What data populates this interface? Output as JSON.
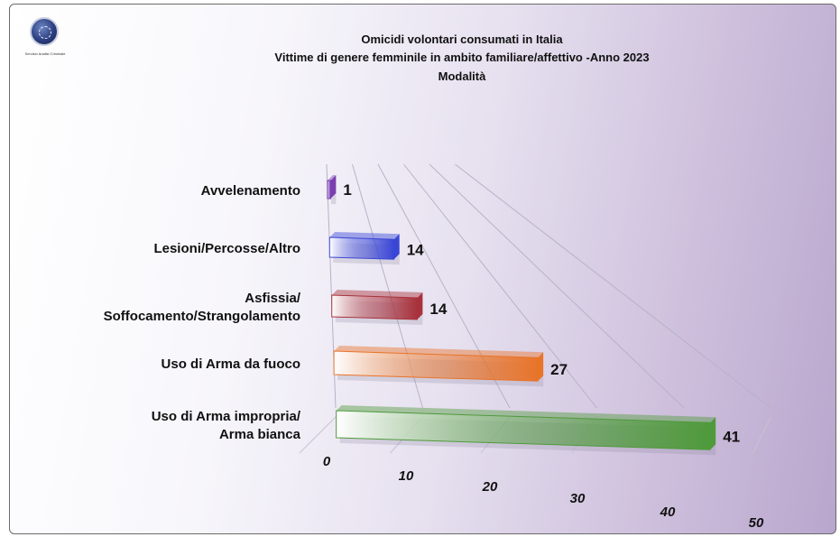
{
  "logo": {
    "caption": "Servizio Analisi Criminale",
    "icon": "police-emblem-icon"
  },
  "chart_data": {
    "type": "bar",
    "orientation": "horizontal",
    "title": [
      "Omicidi volontari consumati in Italia",
      "Vittime di genere femminile in ambito familiare/affettivo -Anno 2023",
      "Modalità"
    ],
    "categories": [
      [
        "Avvelenamento"
      ],
      [
        "Lesioni/Percosse/Altro"
      ],
      [
        "Asfissia/",
        "Soffocamento/Strangolamento"
      ],
      [
        "Uso di Arma da fuoco"
      ],
      [
        "Uso di Arma impropria/",
        "Arma bianca"
      ]
    ],
    "values": [
      1,
      14,
      14,
      27,
      41
    ],
    "colors": [
      "#7a3fb0",
      "#3a46d6",
      "#a8323c",
      "#e8742a",
      "#4f9a3c"
    ],
    "ticks": [
      0,
      10,
      20,
      30,
      40,
      50
    ],
    "xlim": [
      0,
      50
    ],
    "grid": true,
    "legend": "none"
  }
}
